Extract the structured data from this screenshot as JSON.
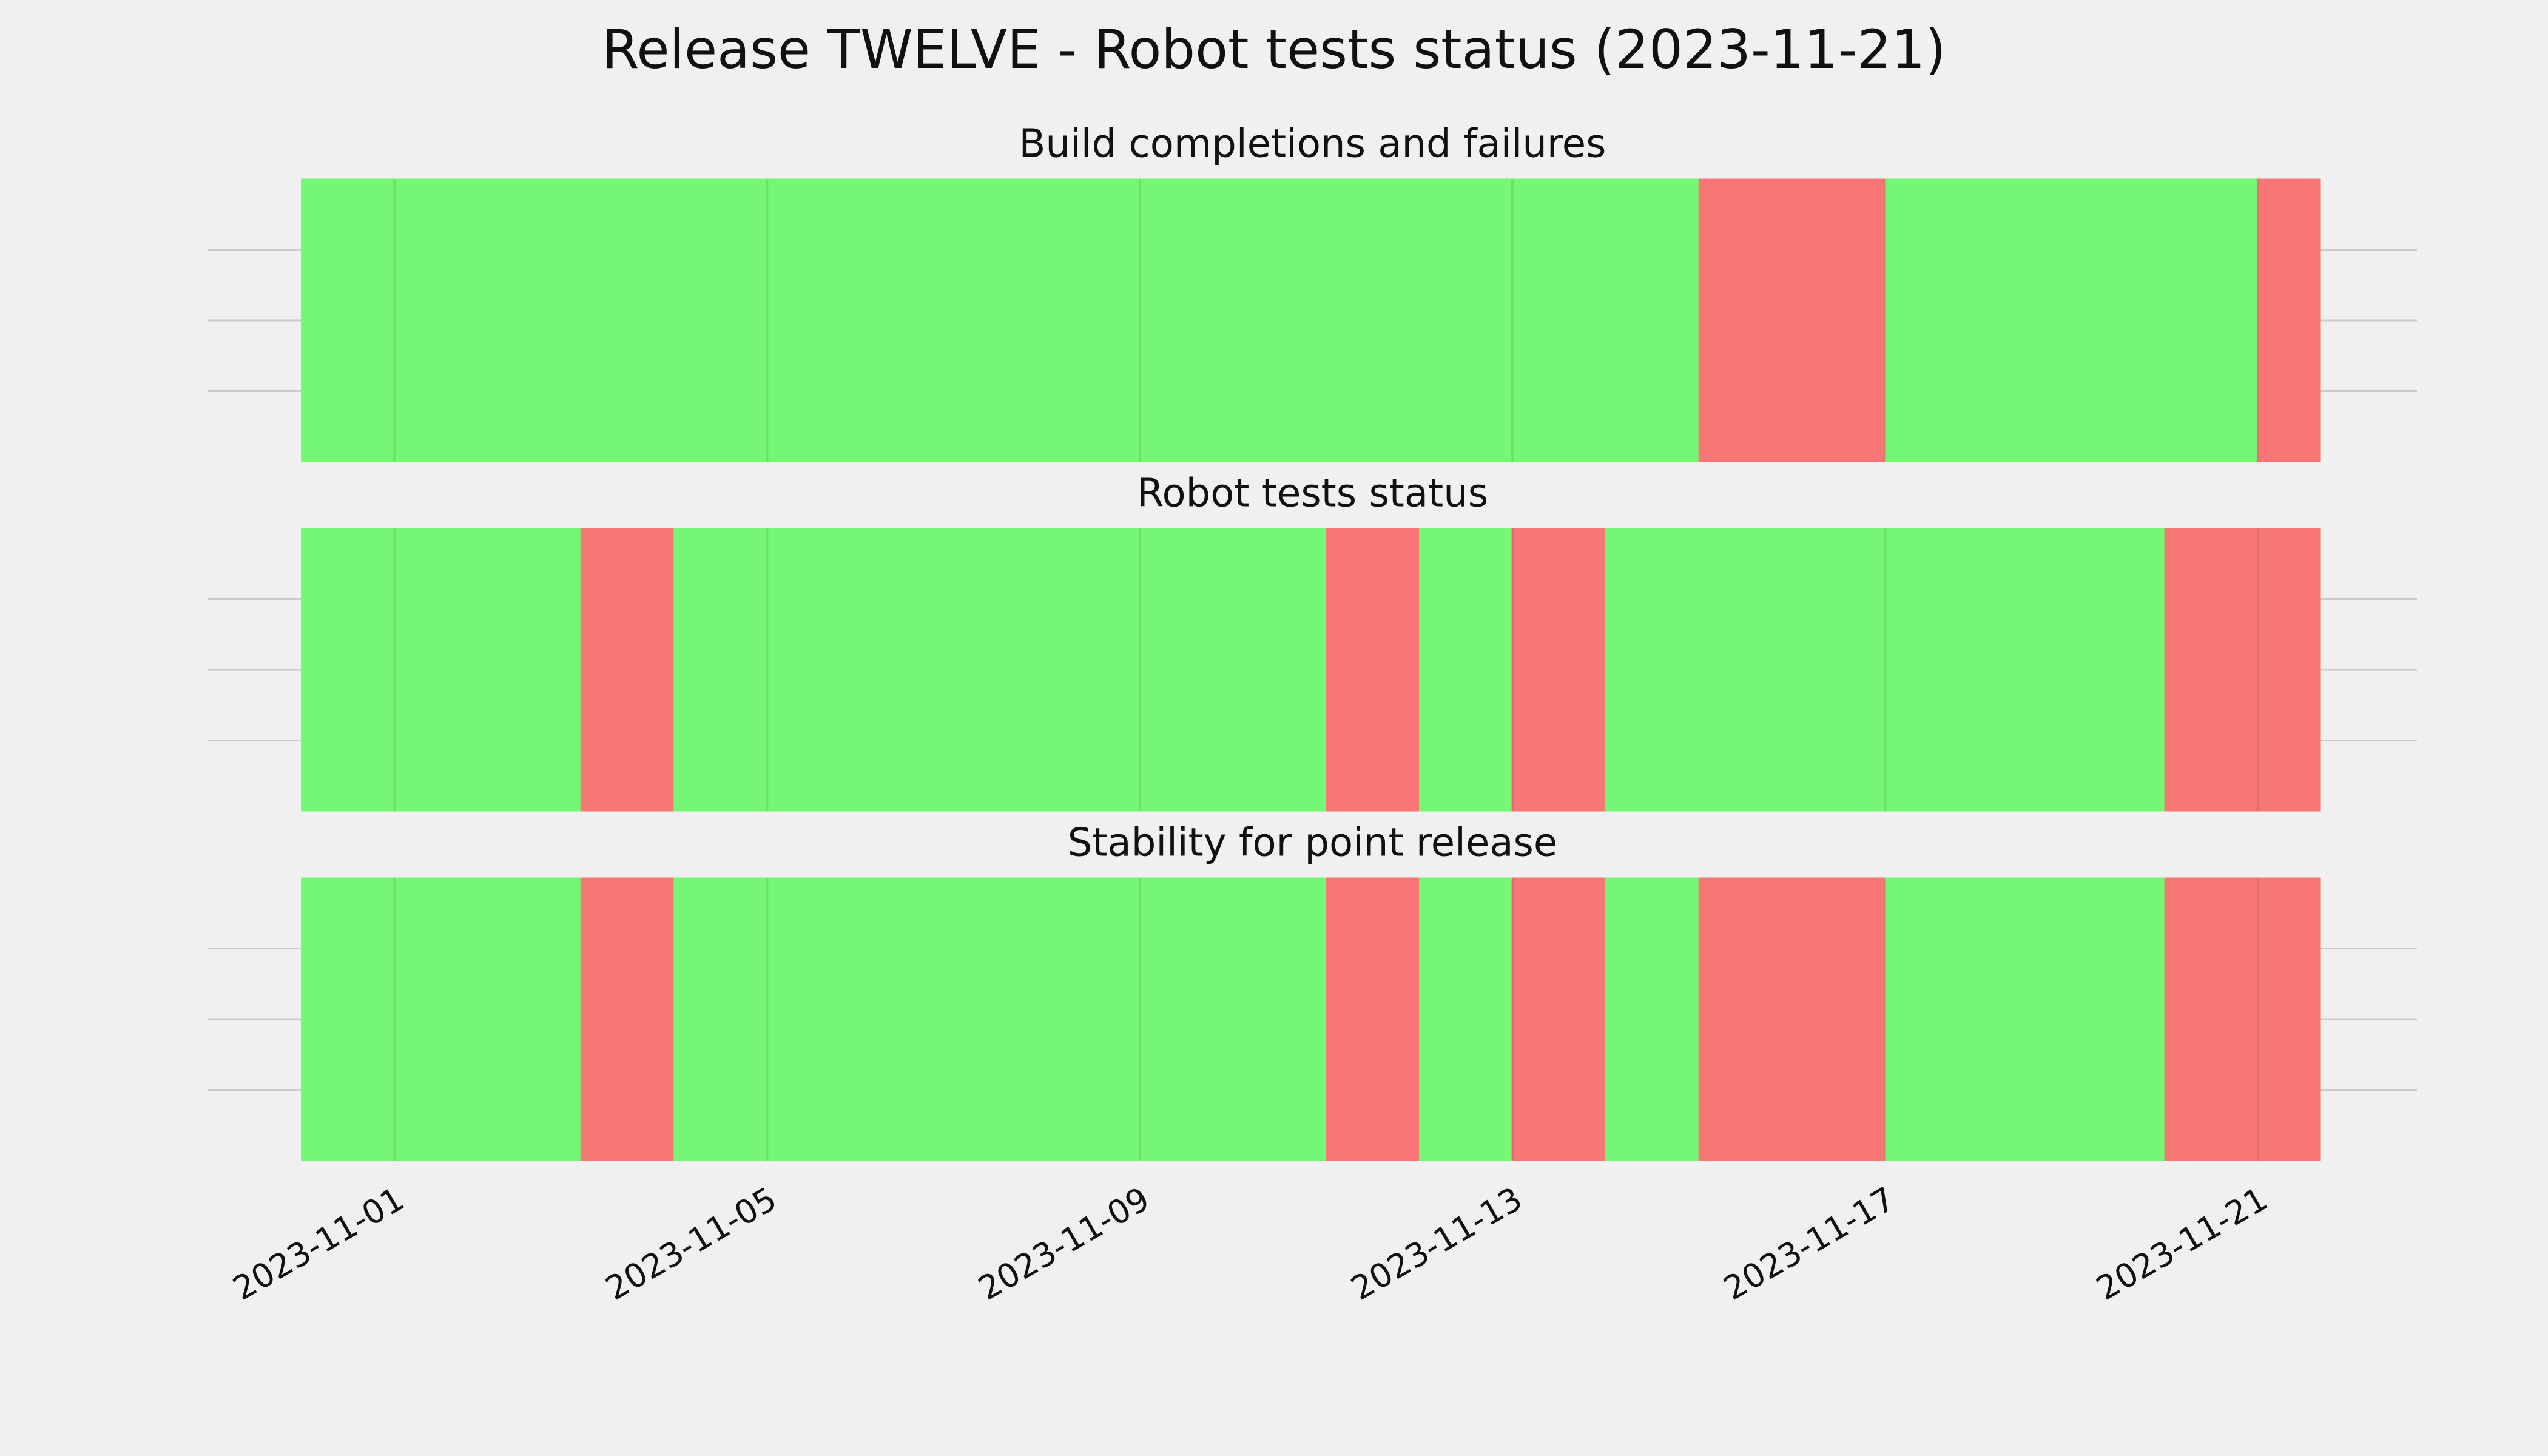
{
  "title": "Release TWELVE - Robot tests status (2023-11-21)",
  "chart_data": [
    {
      "type": "timeline",
      "title": "Build completions and failures",
      "xlim": [
        "2023-10-30",
        "2023-11-22T17:00"
      ],
      "xticks": [
        "2023-11-01",
        "2023-11-05",
        "2023-11-09",
        "2023-11-13",
        "2023-11-17",
        "2023-11-21"
      ],
      "ylim": [
        0,
        1
      ],
      "ygrid": [
        0.25,
        0.5,
        0.75
      ],
      "segments": [
        {
          "start": "2023-10-31",
          "end": "2023-11-15",
          "color": "#75f775"
        },
        {
          "start": "2023-11-15",
          "end": "2023-11-17",
          "color": "#f77777"
        },
        {
          "start": "2023-11-17",
          "end": "2023-11-21",
          "color": "#75f775"
        },
        {
          "start": "2023-11-21",
          "end": "2023-11-21T16:00",
          "color": "#f77777"
        }
      ]
    },
    {
      "type": "timeline",
      "title": "Robot tests status",
      "xlim": [
        "2023-10-30",
        "2023-11-22T17:00"
      ],
      "xticks": [
        "2023-11-01",
        "2023-11-05",
        "2023-11-09",
        "2023-11-13",
        "2023-11-17",
        "2023-11-21"
      ],
      "ylim": [
        0,
        1
      ],
      "ygrid": [
        0.25,
        0.5,
        0.75
      ],
      "segments": [
        {
          "start": "2023-10-31",
          "end": "2023-11-03",
          "color": "#75f775"
        },
        {
          "start": "2023-11-03",
          "end": "2023-11-04",
          "color": "#f77777"
        },
        {
          "start": "2023-11-04",
          "end": "2023-11-11",
          "color": "#75f775"
        },
        {
          "start": "2023-11-11",
          "end": "2023-11-12",
          "color": "#f77777"
        },
        {
          "start": "2023-11-12",
          "end": "2023-11-13",
          "color": "#75f775"
        },
        {
          "start": "2023-11-13",
          "end": "2023-11-14",
          "color": "#f77777"
        },
        {
          "start": "2023-11-14",
          "end": "2023-11-20",
          "color": "#75f775"
        },
        {
          "start": "2023-11-20",
          "end": "2023-11-21T16:00",
          "color": "#f77777"
        }
      ]
    },
    {
      "type": "timeline",
      "title": "Stability for point release",
      "xlim": [
        "2023-10-30",
        "2023-11-22T17:00"
      ],
      "xticks": [
        "2023-11-01",
        "2023-11-05",
        "2023-11-09",
        "2023-11-13",
        "2023-11-17",
        "2023-11-21"
      ],
      "ylim": [
        0,
        1
      ],
      "ygrid": [
        0.25,
        0.5,
        0.75
      ],
      "segments": [
        {
          "start": "2023-10-31",
          "end": "2023-11-03",
          "color": "#75f775"
        },
        {
          "start": "2023-11-03",
          "end": "2023-11-04",
          "color": "#f77777"
        },
        {
          "start": "2023-11-04",
          "end": "2023-11-11",
          "color": "#75f775"
        },
        {
          "start": "2023-11-11",
          "end": "2023-11-12",
          "color": "#f77777"
        },
        {
          "start": "2023-11-12",
          "end": "2023-11-13",
          "color": "#75f775"
        },
        {
          "start": "2023-11-13",
          "end": "2023-11-14",
          "color": "#f77777"
        },
        {
          "start": "2023-11-14",
          "end": "2023-11-15",
          "color": "#75f775"
        },
        {
          "start": "2023-11-15",
          "end": "2023-11-17",
          "color": "#f77777"
        },
        {
          "start": "2023-11-17",
          "end": "2023-11-20",
          "color": "#75f775"
        },
        {
          "start": "2023-11-20",
          "end": "2023-11-21T16:00",
          "color": "#f77777"
        }
      ]
    }
  ]
}
